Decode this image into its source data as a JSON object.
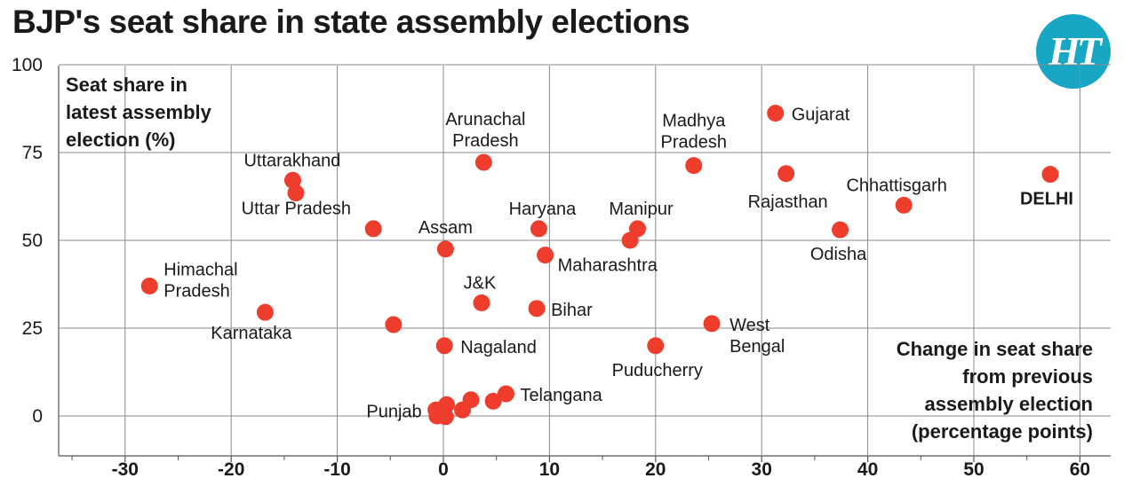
{
  "title": "BJP's seat share in state assembly elections",
  "logo_text": "HT",
  "colors": {
    "dot": "#ee3d2c",
    "grid": "#8a8a8a",
    "logo": "#17a6c4",
    "text": "#1a1a1a"
  },
  "chart_data": {
    "type": "scatter",
    "title": "BJP's seat share in state assembly elections",
    "ylabel_lines": [
      "Seat share in",
      "latest assembly",
      "election (%)"
    ],
    "xlabel_lines": [
      "Change in seat share",
      "from previous",
      "assembly election",
      "(percentage points)"
    ],
    "xlim": [
      -36,
      63
    ],
    "ylim": [
      -11,
      101
    ],
    "xticks": [
      -30,
      -20,
      -10,
      0,
      10,
      20,
      30,
      40,
      50,
      60
    ],
    "xtick_labels": [
      "-30",
      "-20",
      "-10",
      "0",
      "10",
      "20",
      "30",
      "40",
      "50",
      "60"
    ],
    "yticks": [
      0,
      25,
      50,
      75,
      100
    ],
    "ytick_labels": [
      "0",
      "25",
      "50",
      "75",
      "100"
    ],
    "grid": true,
    "points": [
      {
        "x": -27.7,
        "y": 37,
        "label": [
          "Himachal",
          "Pradesh"
        ],
        "bold": false
      },
      {
        "x": -16.8,
        "y": 29.5,
        "label": [
          "Karnataka"
        ],
        "bold": false
      },
      {
        "x": -14.2,
        "y": 67.1,
        "label": [
          "Uttarakhand"
        ],
        "bold": false
      },
      {
        "x": -13.9,
        "y": 63.5,
        "label": [
          "Uttar Pradesh"
        ],
        "bold": false
      },
      {
        "x": -6.6,
        "y": 53.3,
        "label": [],
        "bold": false
      },
      {
        "x": -4.7,
        "y": 26,
        "label": [],
        "bold": false
      },
      {
        "x": 0.2,
        "y": 47.5,
        "label": [
          "Assam"
        ],
        "bold": false
      },
      {
        "x": 0.1,
        "y": 20,
        "label": [
          "Nagaland"
        ],
        "bold": false
      },
      {
        "x": 3.8,
        "y": 72.2,
        "label": [
          "Arunachal",
          "Pradesh"
        ],
        "bold": false
      },
      {
        "x": 3.6,
        "y": 32.2,
        "label": [
          "J&K"
        ],
        "bold": false
      },
      {
        "x": 9.0,
        "y": 53.3,
        "label": [
          "Haryana"
        ],
        "bold": false
      },
      {
        "x": 9.6,
        "y": 45.8,
        "label": [
          "Maharashtra"
        ],
        "bold": false
      },
      {
        "x": 8.8,
        "y": 30.6,
        "label": [
          "Bihar"
        ],
        "bold": false
      },
      {
        "x": 18.3,
        "y": 53.3,
        "label": [
          "Manipur"
        ],
        "bold": false
      },
      {
        "x": 17.6,
        "y": 50,
        "label": [],
        "bold": false
      },
      {
        "x": 23.6,
        "y": 71.3,
        "label": [
          "Madhya",
          "Pradesh"
        ],
        "bold": false
      },
      {
        "x": 31.3,
        "y": 86.2,
        "label": [
          "Gujarat"
        ],
        "bold": false
      },
      {
        "x": 32.3,
        "y": 69,
        "label": [
          "Rajasthan"
        ],
        "bold": false
      },
      {
        "x": 37.4,
        "y": 53,
        "label": [
          "Odisha"
        ],
        "bold": false
      },
      {
        "x": 43.4,
        "y": 60,
        "label": [
          "Chhattisgarh"
        ],
        "bold": false
      },
      {
        "x": 57.2,
        "y": 68.8,
        "label": [
          "DELHI"
        ],
        "bold": true
      },
      {
        "x": 25.3,
        "y": 26.3,
        "label": [
          "West",
          "Bengal"
        ],
        "bold": false
      },
      {
        "x": 20.0,
        "y": 20,
        "label": [
          "Puducherry"
        ],
        "bold": false
      },
      {
        "x": 5.9,
        "y": 6.3,
        "label": [
          "Telangana"
        ],
        "bold": false
      },
      {
        "x": -0.7,
        "y": 1.7,
        "label": [
          "Punjab"
        ],
        "bold": false
      },
      {
        "x": -0.6,
        "y": 0,
        "label": [],
        "bold": false
      },
      {
        "x": 0.3,
        "y": 3.2,
        "label": [],
        "bold": false
      },
      {
        "x": 0.2,
        "y": -0.2,
        "label": [],
        "bold": false
      },
      {
        "x": 1.8,
        "y": 1.7,
        "label": [],
        "bold": false
      },
      {
        "x": 2.6,
        "y": 4.6,
        "label": [],
        "bold": false
      },
      {
        "x": 4.7,
        "y": 4.2,
        "label": [],
        "bold": false
      }
    ]
  }
}
